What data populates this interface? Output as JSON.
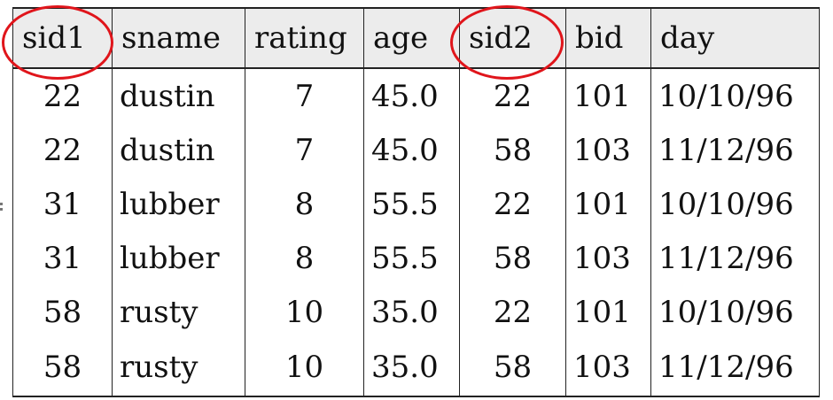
{
  "table": {
    "headers": [
      "sid1",
      "sname",
      "rating",
      "age",
      "sid2",
      "bid",
      "day"
    ],
    "rows": [
      [
        "22",
        "dustin",
        "7",
        "45.0",
        "22",
        "101",
        "10/10/96"
      ],
      [
        "22",
        "dustin",
        "7",
        "45.0",
        "58",
        "103",
        "11/12/96"
      ],
      [
        "31",
        "lubber",
        "8",
        "55.5",
        "22",
        "101",
        "10/10/96"
      ],
      [
        "31",
        "lubber",
        "8",
        "55.5",
        "58",
        "103",
        "11/12/96"
      ],
      [
        "58",
        "rusty",
        "10",
        "35.0",
        "22",
        "101",
        "10/10/96"
      ],
      [
        "58",
        "rusty",
        "10",
        "35.0",
        "58",
        "103",
        "11/12/96"
      ]
    ]
  },
  "highlight_color": "#e0151b",
  "highlighted_columns": [
    "sid1",
    "sid2"
  ]
}
